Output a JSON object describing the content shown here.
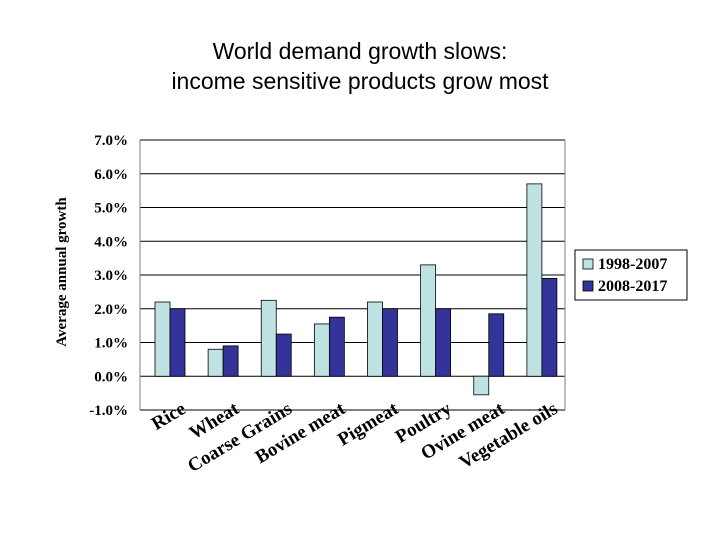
{
  "title_line1": "World demand growth slows:",
  "title_line2": "income sensitive products grow most",
  "colors": {
    "series_1998_2007": "#bfe3e3",
    "series_2008_2017": "#333399",
    "axis": "#808080",
    "grid": "#000000"
  },
  "chart_data": {
    "type": "bar",
    "title": "World demand growth slows: income sensitive products grow most",
    "ylabel": "Average annual growth",
    "xlabel": "",
    "ylim": [
      -1.0,
      7.0
    ],
    "yticks": [
      "-1.0%",
      "0.0%",
      "1.0%",
      "2.0%",
      "3.0%",
      "4.0%",
      "5.0%",
      "6.0%",
      "7.0%"
    ],
    "grid": "horizontal",
    "legend_position": "right",
    "categories": [
      "Rice",
      "Wheat",
      "Coarse Grains",
      "Bovine meat",
      "Pigmeat",
      "Poultry",
      "Ovine meat",
      "Vegetable oils"
    ],
    "series": [
      {
        "name": "1998-2007",
        "values": [
          2.2,
          0.8,
          2.25,
          1.55,
          2.2,
          3.3,
          -0.55,
          5.7
        ]
      },
      {
        "name": "2008-2017",
        "values": [
          2.0,
          0.9,
          1.25,
          1.75,
          2.0,
          2.0,
          1.85,
          2.9
        ]
      }
    ]
  }
}
